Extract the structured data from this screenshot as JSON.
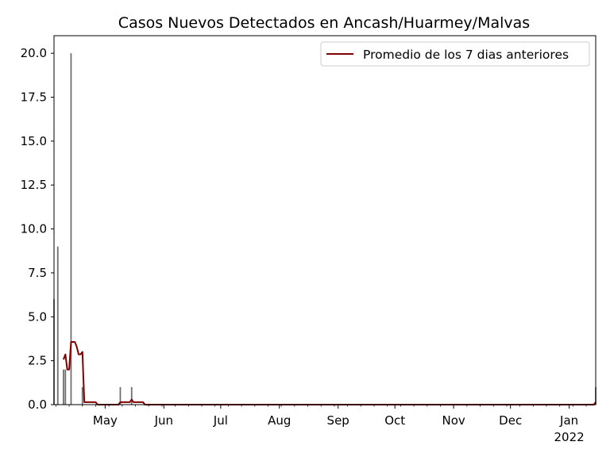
{
  "chart_data": {
    "type": "bar",
    "title": "Casos Nuevos Detectados en Ancash/Huarmey/Malvas",
    "xlabel": "",
    "ylabel": "",
    "ylim": [
      0,
      21
    ],
    "x_range": [
      "2021-04-04",
      "2022-01-15"
    ],
    "yticks": [
      0.0,
      2.5,
      5.0,
      7.5,
      10.0,
      12.5,
      15.0,
      17.5,
      20.0
    ],
    "ytick_labels": [
      "0.0",
      "2.5",
      "5.0",
      "7.5",
      "10.0",
      "12.5",
      "15.0",
      "17.5",
      "20.0"
    ],
    "xticks": [
      {
        "date": "2021-05-01",
        "label": "May"
      },
      {
        "date": "2021-06-01",
        "label": "Jun"
      },
      {
        "date": "2021-07-01",
        "label": "Jul"
      },
      {
        "date": "2021-08-01",
        "label": "Aug"
      },
      {
        "date": "2021-09-01",
        "label": "Sep"
      },
      {
        "date": "2021-10-01",
        "label": "Oct"
      },
      {
        "date": "2021-11-01",
        "label": "Nov"
      },
      {
        "date": "2021-12-01",
        "label": "Dec"
      },
      {
        "date": "2022-01-01",
        "label": "Jan",
        "sublabel": "2022"
      }
    ],
    "series": [
      {
        "kind": "bar",
        "color": "#707070",
        "points": [
          {
            "date": "2021-04-04",
            "value": 6
          },
          {
            "date": "2021-04-06",
            "value": 9
          },
          {
            "date": "2021-04-09",
            "value": 2
          },
          {
            "date": "2021-04-10",
            "value": 2
          },
          {
            "date": "2021-04-13",
            "value": 20
          },
          {
            "date": "2021-04-19",
            "value": 1
          },
          {
            "date": "2021-05-09",
            "value": 1
          },
          {
            "date": "2021-05-15",
            "value": 1
          },
          {
            "date": "2022-01-15",
            "value": 1
          }
        ]
      },
      {
        "kind": "line",
        "name": "Promedio de los 7 dias anteriores",
        "color": "#800000",
        "points": [
          {
            "date": "2021-04-09",
            "value": 2.57
          },
          {
            "date": "2021-04-10",
            "value": 2.86
          },
          {
            "date": "2021-04-11",
            "value": 2.0
          },
          {
            "date": "2021-04-12",
            "value": 2.0
          },
          {
            "date": "2021-04-13",
            "value": 3.57
          },
          {
            "date": "2021-04-14",
            "value": 3.57
          },
          {
            "date": "2021-04-15",
            "value": 3.57
          },
          {
            "date": "2021-04-16",
            "value": 3.29
          },
          {
            "date": "2021-04-17",
            "value": 2.86
          },
          {
            "date": "2021-04-18",
            "value": 2.86
          },
          {
            "date": "2021-04-19",
            "value": 3.0
          },
          {
            "date": "2021-04-20",
            "value": 0.14
          },
          {
            "date": "2021-04-26",
            "value": 0.14
          },
          {
            "date": "2021-04-27",
            "value": 0.0
          },
          {
            "date": "2021-05-08",
            "value": 0.0
          },
          {
            "date": "2021-05-09",
            "value": 0.14
          },
          {
            "date": "2021-05-14",
            "value": 0.14
          },
          {
            "date": "2021-05-15",
            "value": 0.29
          },
          {
            "date": "2021-05-16",
            "value": 0.14
          },
          {
            "date": "2021-05-21",
            "value": 0.14
          },
          {
            "date": "2021-05-22",
            "value": 0.0
          },
          {
            "date": "2022-01-14",
            "value": 0.0
          },
          {
            "date": "2022-01-15",
            "value": 0.14
          }
        ]
      }
    ],
    "legend": {
      "position": "top-right",
      "entries": [
        "Promedio de los 7 dias anteriores"
      ]
    },
    "grid": false
  }
}
